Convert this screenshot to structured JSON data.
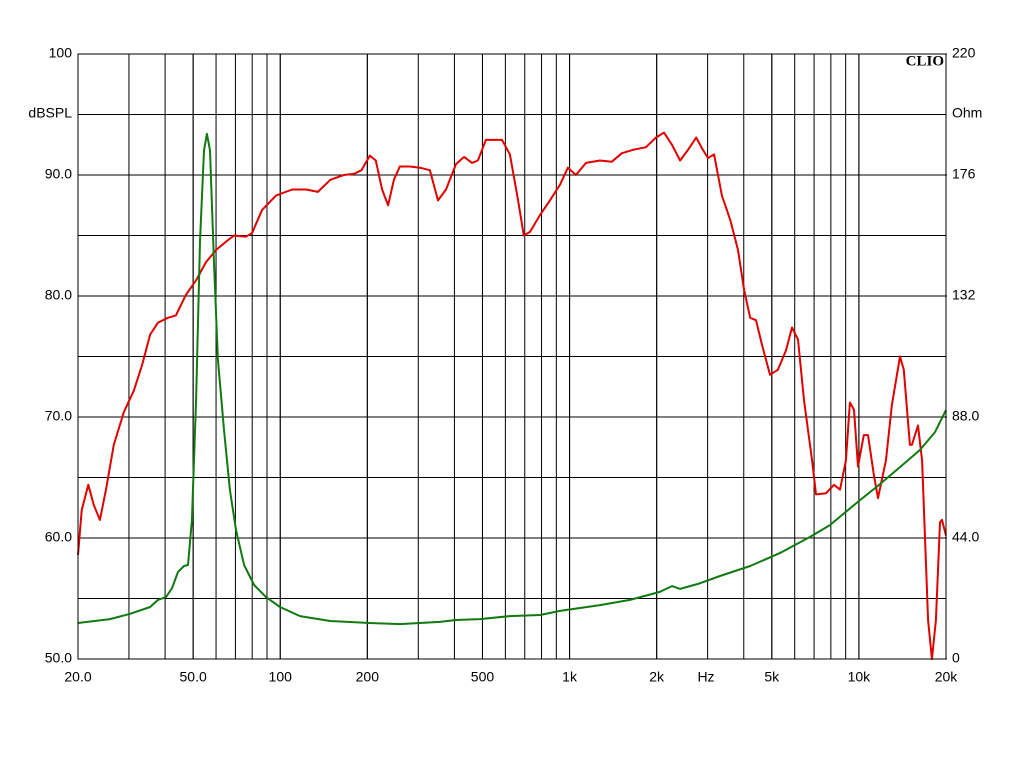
{
  "chart_data": {
    "type": "line",
    "logo": "CLIO",
    "ylabel": "dBSPL",
    "y2label": "Ohm",
    "xlabel": "Hz",
    "xscale": "log",
    "grid": true,
    "xlim": [
      20,
      20000
    ],
    "ylim": [
      50,
      100
    ],
    "y2lim": [
      0,
      220
    ],
    "xticks": [
      {
        "value": 20,
        "label": "20.0"
      },
      {
        "value": 50,
        "label": "50.0"
      },
      100,
      200,
      500,
      {
        "value": 1000,
        "label": "1k"
      },
      {
        "value": 2000,
        "label": "2k"
      },
      {
        "value": 5000,
        "label": "5k"
      },
      {
        "value": 10000,
        "label": "10k"
      },
      {
        "value": 20000,
        "label": "20k"
      }
    ],
    "yticks": [
      {
        "value": 50,
        "label": "50.0"
      },
      {
        "value": 60,
        "label": "60.0"
      },
      {
        "value": 70,
        "label": "70.0"
      },
      {
        "value": 80,
        "label": "80.0"
      },
      {
        "value": 90,
        "label": "90.0"
      },
      100
    ],
    "y2ticks": [
      0,
      {
        "value": 44,
        "label": "44.0"
      },
      {
        "value": 88,
        "label": "88.0"
      },
      132,
      176,
      220
    ],
    "series": [
      {
        "color": "#e00000",
        "x": [
          20,
          20.6,
          21.7,
          22.7,
          23.8,
          25.0,
          26.6,
          28.8,
          31.2,
          33.3,
          35.5,
          37.8,
          40.9,
          43.6,
          47.2,
          51.2,
          55.4,
          60.0,
          65.0,
          69.2,
          76.1,
          79.9,
          86.5,
          96.7,
          110,
          123,
          135,
          149,
          166,
          180,
          191,
          204,
          214,
          225,
          236,
          247,
          259,
          281,
          304,
          329,
          351,
          374,
          405,
          432,
          460,
          482,
          514,
          557,
          584,
          622,
          664,
          695,
          730,
          791,
          855,
          927,
          987,
          1052,
          1140,
          1274,
          1400,
          1517,
          1670,
          1837,
          1990,
          2120,
          2260,
          2410,
          2570,
          2740,
          2870,
          3010,
          3160,
          3360,
          3590,
          3820,
          4010,
          4210,
          4410,
          4620,
          4930,
          5250,
          5600,
          5870,
          6160,
          6460,
          6890,
          7110,
          7700,
          8200,
          8600,
          9020,
          9310,
          9620,
          9930,
          10400,
          10750,
          11270,
          11640,
          12400,
          13000,
          13870,
          14300,
          15000,
          15250,
          16000,
          16530,
          17340,
          17880,
          18460,
          19060,
          19370,
          20000
        ],
        "values": [
          58.6,
          62.3,
          64.4,
          62.7,
          61.5,
          64.0,
          67.7,
          70.4,
          72.2,
          74.3,
          76.8,
          77.8,
          78.2,
          78.4,
          80.1,
          81.3,
          82.8,
          83.8,
          84.5,
          85.0,
          84.9,
          85.2,
          87.1,
          88.3,
          88.8,
          88.8,
          88.6,
          89.6,
          90.0,
          90.1,
          90.4,
          91.6,
          91.2,
          88.8,
          87.5,
          89.6,
          90.7,
          90.7,
          90.6,
          90.4,
          87.9,
          88.8,
          90.9,
          91.5,
          91.0,
          91.2,
          92.9,
          92.9,
          92.9,
          91.7,
          87.9,
          85.0,
          85.3,
          86.7,
          87.9,
          89.2,
          90.6,
          90.0,
          91.0,
          91.2,
          91.1,
          91.8,
          92.1,
          92.3,
          93.1,
          93.5,
          92.5,
          91.2,
          92.1,
          93.1,
          92.2,
          91.4,
          91.7,
          88.3,
          86.3,
          83.8,
          80.5,
          78.2,
          78.0,
          76.0,
          73.5,
          73.9,
          75.5,
          77.4,
          76.4,
          71.4,
          66.4,
          63.6,
          63.7,
          64.4,
          64.0,
          66.4,
          71.2,
          70.6,
          65.9,
          68.5,
          68.5,
          65.2,
          63.3,
          66.4,
          71.0,
          75.0,
          73.9,
          67.7,
          67.7,
          69.3,
          66.4,
          53.2,
          50.0,
          53.2,
          61.3,
          61.5,
          60.2
        ]
      },
      {
        "color": "#107a10",
        "axis": "y2",
        "x": [
          20,
          25.8,
          30.2,
          35.5,
          37.8,
          40.3,
          42.3,
          44.3,
          46.5,
          48.0,
          49.5,
          51.2,
          52.8,
          54.5,
          55.8,
          57.2,
          59.0,
          60.9,
          63.9,
          67.0,
          70.3,
          75.0,
          81.2,
          89.3,
          99.8,
          117,
          149,
          204,
          259,
          356,
          405,
          490,
          622,
          791,
          927,
          1274,
          1617,
          2050,
          2260,
          2410,
          2780,
          3310,
          4210,
          5330,
          6780,
          7940,
          10090,
          11830,
          13870,
          16250,
          18320,
          20000
        ],
        "values": [
          13.1,
          14.5,
          16.4,
          18.9,
          21.5,
          22.5,
          25.8,
          31.6,
          33.8,
          34.2,
          50.5,
          94.2,
          152,
          185,
          191,
          185,
          145,
          109,
          83.3,
          61.5,
          46.9,
          34.2,
          26.9,
          22.5,
          18.9,
          15.6,
          13.8,
          13.1,
          12.7,
          13.5,
          14.2,
          14.5,
          15.6,
          16.0,
          17.5,
          19.6,
          21.5,
          24.4,
          26.5,
          25.5,
          27.3,
          30.2,
          33.8,
          38.5,
          44.4,
          48.7,
          57.8,
          63.6,
          69.8,
          76.0,
          82.5,
          90.5
        ]
      }
    ]
  }
}
